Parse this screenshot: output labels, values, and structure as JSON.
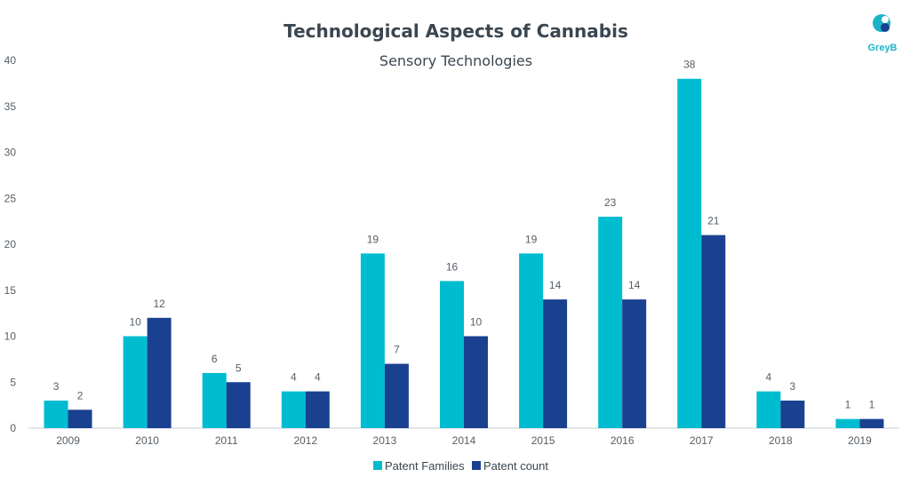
{
  "logo": {
    "text": "GreyB"
  },
  "colors": {
    "patent_families": "#00bcd0",
    "patent_count": "#1a4190",
    "axis": "#c9cfd4",
    "text": "#3a4650"
  },
  "chart_data": {
    "type": "bar",
    "title": "Technological Aspects of Cannabis",
    "subtitle": "Sensory Technologies",
    "categories": [
      "2009",
      "2010",
      "2011",
      "2012",
      "2013",
      "2014",
      "2015",
      "2016",
      "2017",
      "2018",
      "2019"
    ],
    "series": [
      {
        "name": "Patent Families",
        "values": [
          3,
          10,
          6,
          4,
          19,
          16,
          19,
          23,
          38,
          4,
          1
        ]
      },
      {
        "name": "Patent count",
        "values": [
          2,
          12,
          5,
          4,
          7,
          10,
          14,
          14,
          21,
          3,
          1
        ]
      }
    ],
    "xlabel": "",
    "ylabel": "",
    "ylim": [
      0,
      40
    ],
    "yticks": [
      0,
      5,
      10,
      15,
      20,
      25,
      30,
      35,
      40
    ],
    "grid": false,
    "legend": "bottom-center",
    "data_labels": true
  }
}
